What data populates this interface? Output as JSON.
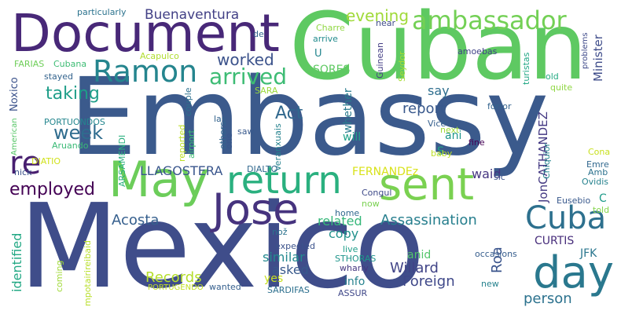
{
  "words": [
    {
      "text": "Embassy",
      "color": "#3b5a8c"
    },
    {
      "text": "Mexico",
      "color": "#3f4d8a"
    },
    {
      "text": "Cuban",
      "color": "#5ec962"
    },
    {
      "text": "Document",
      "color": "#482878"
    },
    {
      "text": "May",
      "color": "#6ccd5a"
    },
    {
      "text": "sent",
      "color": "#7ad151"
    },
    {
      "text": "return",
      "color": "#2ab07f"
    },
    {
      "text": "Jose",
      "color": "#46337e"
    },
    {
      "text": "day",
      "color": "#2a788e"
    },
    {
      "text": "ambassador",
      "color": "#73d055"
    },
    {
      "text": "Cuba",
      "color": "#2d708e"
    },
    {
      "text": "Ramon",
      "color": "#25858e"
    },
    {
      "text": "re",
      "color": "#481f70"
    },
    {
      "text": "week",
      "color": "#2f6c8e"
    },
    {
      "text": "arrived",
      "color": "#3dbc74"
    },
    {
      "text": "worked",
      "color": "#3b528b"
    },
    {
      "text": "employed",
      "color": "#440154"
    },
    {
      "text": "Buenaventura",
      "color": "#424086"
    },
    {
      "text": "evening",
      "color": "#a0da39"
    },
    {
      "text": "taking",
      "color": "#1f9e89"
    },
    {
      "text": "Act",
      "color": "#31688e"
    },
    {
      "text": "report",
      "color": "#38588c"
    },
    {
      "text": "Assassination",
      "color": "#277f8e"
    },
    {
      "text": "Foreign",
      "color": "#3f4889"
    },
    {
      "text": "Willard",
      "color": "#414487"
    },
    {
      "text": "LLAGOSTERA",
      "color": "#39558c"
    },
    {
      "text": "Records",
      "color": "#b5de2b"
    },
    {
      "text": "Acosta",
      "color": "#355f8d"
    },
    {
      "text": "person",
      "color": "#2c728e"
    },
    {
      "text": "identified",
      "color": "#22a884"
    },
    {
      "text": "similar",
      "color": "#23898e"
    },
    {
      "text": "asked",
      "color": "#38598c"
    },
    {
      "text": "copy",
      "color": "#21918c"
    },
    {
      "text": "related",
      "color": "#35b779"
    },
    {
      "text": "Roa",
      "color": "#3a548c"
    },
    {
      "text": "waid",
      "color": "#453581"
    },
    {
      "text": "CURTIS",
      "color": "#472d7b"
    },
    {
      "text": "JFK",
      "color": "#2a768e"
    },
    {
      "text": "anid",
      "color": "#52c569"
    },
    {
      "text": "info",
      "color": "#26828e"
    },
    {
      "text": "yes",
      "color": "#c8e020"
    },
    {
      "text": "will",
      "color": "#1fa188"
    },
    {
      "text": "say",
      "color": "#2e6e8e"
    },
    {
      "text": "ani",
      "color": "#1f958b"
    },
    {
      "text": "S",
      "color": "#20a386"
    },
    {
      "text": "C",
      "color": "#1e9b8a"
    },
    {
      "text": "FERNANDEz",
      "color": "#d8e219"
    },
    {
      "text": "Minister",
      "color": "#3e4c8a"
    },
    {
      "text": "JonCATHANDEZ",
      "color": "#443983"
    },
    {
      "text": "Noxico",
      "color": "#3b528b"
    },
    {
      "text": "whether",
      "color": "#297b8e"
    },
    {
      "text": "SORES",
      "color": "#5ec962"
    },
    {
      "text": "U",
      "color": "#24868e"
    },
    {
      "text": "particularly",
      "color": "#2c738e"
    },
    {
      "text": "FARIAS",
      "color": "#6ece58"
    },
    {
      "text": "Cubana",
      "color": "#3dbc74"
    },
    {
      "text": "stayed",
      "color": "#33638d"
    },
    {
      "text": "PORTUONDOS",
      "color": "#24868e"
    },
    {
      "text": "American",
      "color": "#56c667"
    },
    {
      "text": "Aruando",
      "color": "#3aba76"
    },
    {
      "text": "ARSAMENDI",
      "color": "#2ab07f"
    },
    {
      "text": "nick",
      "color": "#3b528b"
    },
    {
      "text": "DIATIO",
      "color": "#d0e11c"
    },
    {
      "text": "Acapulco",
      "color": "#b0dd2f"
    },
    {
      "text": "couple",
      "color": "#2d708e"
    },
    {
      "text": "airport",
      "color": "#3dbc74"
    },
    {
      "text": "reported",
      "color": "#bddf26"
    },
    {
      "text": "others",
      "color": "#32658e"
    },
    {
      "text": "one",
      "color": "#39568c"
    },
    {
      "text": "saw",
      "color": "#38598c"
    },
    {
      "text": "las",
      "color": "#33638d"
    },
    {
      "text": "SARA",
      "color": "#9bd93c"
    },
    {
      "text": "Veranxuais",
      "color": "#26828e"
    },
    {
      "text": "DIALTO",
      "color": "#31688e"
    },
    {
      "text": "Charre",
      "color": "#90d743"
    },
    {
      "text": "arrive",
      "color": "#228b8d"
    },
    {
      "text": "near",
      "color": "#3e4a89"
    },
    {
      "text": "de",
      "color": "#32648e"
    },
    {
      "text": "Guinean",
      "color": "#433d84"
    },
    {
      "text": "Seydor",
      "color": "#a8db34"
    },
    {
      "text": "amoebas",
      "color": "#414487"
    },
    {
      "text": "turistas",
      "color": "#22a785"
    },
    {
      "text": "problems",
      "color": "#3e4989"
    },
    {
      "text": "old",
      "color": "#24aa83"
    },
    {
      "text": "quite",
      "color": "#90d743"
    },
    {
      "text": "forror",
      "color": "#33638d"
    },
    {
      "text": "next",
      "color": "#a0da39"
    },
    {
      "text": "Vice",
      "color": "#355f8d"
    },
    {
      "text": "baby",
      "color": "#bddf26"
    },
    {
      "text": "fine",
      "color": "#440154"
    },
    {
      "text": "Chiquior",
      "color": "#24868e"
    },
    {
      "text": "Cona",
      "color": "#c8e020"
    },
    {
      "text": "Emre",
      "color": "#31688e"
    },
    {
      "text": "Amb",
      "color": "#2c728e"
    },
    {
      "text": "Ovidis",
      "color": "#26828e"
    },
    {
      "text": "sic",
      "color": "#3b528b"
    },
    {
      "text": "Eusebio",
      "color": "#38588c"
    },
    {
      "text": "told",
      "color": "#84d44b"
    },
    {
      "text": "Congul",
      "color": "#3e4a89"
    },
    {
      "text": "now",
      "color": "#7ad151"
    },
    {
      "text": "home",
      "color": "#31688e"
    },
    {
      "text": "nož",
      "color": "#2c728e"
    },
    {
      "text": "live",
      "color": "#1f9e89"
    },
    {
      "text": "expected",
      "color": "#3b528b"
    },
    {
      "text": "STHORAS",
      "color": "#1f958b"
    },
    {
      "text": "wharly",
      "color": "#453781"
    },
    {
      "text": "mpotairireibaid",
      "color": "#b8de29"
    },
    {
      "text": "coming",
      "color": "#a0da39"
    },
    {
      "text": "PORTUGENDO",
      "color": "#c2df23"
    },
    {
      "text": "wanted",
      "color": "#355f8d"
    },
    {
      "text": "SARDIFAS",
      "color": "#2d708e"
    },
    {
      "text": "ASSUR",
      "color": "#3f4788"
    },
    {
      "text": "new",
      "color": "#26828e"
    },
    {
      "text": "occasions",
      "color": "#365d8d"
    }
  ]
}
